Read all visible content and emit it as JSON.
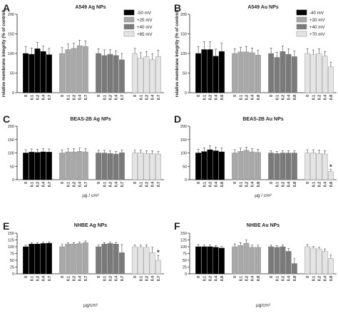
{
  "figure": {
    "shared_ylabel": "relative membrane integrity (% of control)"
  },
  "chart_data": [
    {
      "panel": "A",
      "title": "A549 Ag NPs",
      "type": "bar",
      "xlabel": "",
      "ylabel": "relative membrane integrity (% of control)",
      "ylim": [
        0,
        200
      ],
      "yticks": [
        0,
        50,
        100,
        150,
        200
      ],
      "categories": [
        "0",
        "0.1",
        "0.2",
        "0.4",
        "0.7"
      ],
      "series": [
        {
          "name": "-50 mV",
          "color": "#000000",
          "values": [
            100,
            98,
            112,
            105,
            97
          ],
          "errors": [
            18,
            16,
            16,
            14,
            16
          ]
        },
        {
          "name": "+25 mV",
          "color": "#a8a8a8",
          "values": [
            100,
            110,
            113,
            120,
            118
          ],
          "errors": [
            15,
            14,
            13,
            14,
            14
          ]
        },
        {
          "name": "+40 mV",
          "color": "#7a7a7a",
          "values": [
            100,
            95,
            98,
            95,
            84
          ],
          "errors": [
            12,
            14,
            12,
            12,
            16
          ]
        },
        {
          "name": "+65 mV",
          "color": "#e4e4e4",
          "values": [
            100,
            88,
            92,
            84,
            92
          ],
          "errors": [
            13,
            14,
            13,
            15,
            16
          ]
        }
      ]
    },
    {
      "panel": "B",
      "title": "A549 Au NPs",
      "type": "bar",
      "xlabel": "",
      "ylabel": "",
      "ylim": [
        0,
        200
      ],
      "yticks": [
        0,
        50,
        100,
        150,
        200
      ],
      "categories": [
        "0",
        "0.1",
        "0.2",
        "0.4",
        "0.8"
      ],
      "series": [
        {
          "name": "-40 mV",
          "color": "#000000",
          "values": [
            100,
            110,
            110,
            93,
            105
          ],
          "errors": [
            18,
            20,
            20,
            18,
            22
          ]
        },
        {
          "name": "+20 mV",
          "color": "#a8a8a8",
          "values": [
            100,
            104,
            104,
            102,
            96
          ],
          "errors": [
            12,
            12,
            14,
            12,
            12
          ]
        },
        {
          "name": "+40 mV",
          "color": "#7a7a7a",
          "values": [
            100,
            90,
            105,
            98,
            92
          ],
          "errors": [
            14,
            13,
            14,
            14,
            14
          ]
        },
        {
          "name": "+70 mV",
          "color": "#e4e4e4",
          "values": [
            100,
            97,
            100,
            93,
            66
          ],
          "errors": [
            12,
            12,
            12,
            12,
            12
          ]
        }
      ]
    },
    {
      "panel": "C",
      "title": "BEAS-2B Ag NPs",
      "type": "bar",
      "xlabel": "µg / cm²",
      "ylabel": "",
      "ylim": [
        0,
        200
      ],
      "yticks": [
        0,
        50,
        100,
        150,
        200
      ],
      "categories": [
        "0",
        "0.1",
        "0.2",
        "0.4",
        "0.7"
      ],
      "series": [
        {
          "name": "",
          "color": "#000000",
          "values": [
            100,
            103,
            102,
            104,
            103
          ],
          "errors": [
            12,
            12,
            12,
            12,
            12
          ]
        },
        {
          "name": "",
          "color": "#a8a8a8",
          "values": [
            100,
            104,
            104,
            106,
            104
          ],
          "errors": [
            12,
            12,
            12,
            12,
            12
          ]
        },
        {
          "name": "",
          "color": "#7a7a7a",
          "values": [
            100,
            100,
            98,
            96,
            101
          ],
          "errors": [
            10,
            10,
            10,
            10,
            10
          ]
        },
        {
          "name": "",
          "color": "#e4e4e4",
          "values": [
            100,
            100,
            98,
            98,
            96
          ],
          "errors": [
            10,
            10,
            10,
            10,
            10
          ]
        }
      ]
    },
    {
      "panel": "D",
      "title": "BEAS-2B Au NPs",
      "type": "bar",
      "xlabel": "µg / cm²",
      "ylabel": "",
      "ylim": [
        0,
        200
      ],
      "yticks": [
        0,
        50,
        100,
        150,
        200
      ],
      "categories": [
        "0",
        "0.1",
        "0.2",
        "0.4",
        "0.8"
      ],
      "annotations": [
        {
          "group": 3,
          "bar": 4,
          "text": "*"
        }
      ],
      "series": [
        {
          "name": "",
          "color": "#000000",
          "values": [
            100,
            105,
            112,
            108,
            104
          ],
          "errors": [
            14,
            14,
            14,
            14,
            14
          ]
        },
        {
          "name": "",
          "color": "#a8a8a8",
          "values": [
            100,
            106,
            110,
            104,
            102
          ],
          "errors": [
            12,
            12,
            12,
            12,
            12
          ]
        },
        {
          "name": "",
          "color": "#7a7a7a",
          "values": [
            100,
            98,
            100,
            100,
            100
          ],
          "errors": [
            8,
            8,
            8,
            8,
            8
          ]
        },
        {
          "name": "",
          "color": "#e4e4e4",
          "values": [
            100,
            100,
            98,
            96,
            30
          ],
          "errors": [
            12,
            12,
            12,
            12,
            8
          ]
        }
      ]
    },
    {
      "panel": "E",
      "title": "NHBE Ag NPs",
      "type": "bar",
      "xlabel": "µg/cm²",
      "ylabel": "",
      "ylim": [
        0,
        150
      ],
      "yticks": [
        0,
        25,
        50,
        75,
        100,
        125,
        150
      ],
      "categories": [
        "0",
        "0.1",
        "0.2",
        "0.4",
        "0.7"
      ],
      "annotations": [
        {
          "group": 3,
          "bar": 4,
          "text": "*"
        }
      ],
      "series": [
        {
          "name": "",
          "color": "#000000",
          "values": [
            100,
            110,
            110,
            112,
            113
          ],
          "errors": [
            6,
            5,
            5,
            5,
            5
          ]
        },
        {
          "name": "",
          "color": "#a8a8a8",
          "values": [
            100,
            110,
            110,
            112,
            115
          ],
          "errors": [
            8,
            5,
            5,
            5,
            6
          ]
        },
        {
          "name": "",
          "color": "#7a7a7a",
          "values": [
            100,
            110,
            112,
            110,
            78
          ],
          "errors": [
            6,
            5,
            5,
            6,
            30
          ]
        },
        {
          "name": "",
          "color": "#e4e4e4",
          "values": [
            100,
            98,
            98,
            78,
            50
          ],
          "errors": [
            6,
            8,
            8,
            20,
            18
          ]
        }
      ]
    },
    {
      "panel": "F",
      "title": "NHBE Au NPs",
      "type": "bar",
      "xlabel": "µg/cm²",
      "ylabel": "",
      "ylim": [
        0,
        150
      ],
      "yticks": [
        0,
        25,
        50,
        75,
        100,
        125,
        150
      ],
      "categories": [
        "0",
        "0.1",
        "0.2",
        "0.4",
        "0.8"
      ],
      "series": [
        {
          "name": "",
          "color": "#000000",
          "values": [
            100,
            100,
            100,
            98,
            95
          ],
          "errors": [
            8,
            6,
            6,
            6,
            6
          ]
        },
        {
          "name": "",
          "color": "#a8a8a8",
          "values": [
            100,
            105,
            113,
            98,
            98
          ],
          "errors": [
            10,
            10,
            12,
            8,
            8
          ]
        },
        {
          "name": "",
          "color": "#7a7a7a",
          "values": [
            100,
            98,
            100,
            83,
            38
          ],
          "errors": [
            6,
            6,
            6,
            10,
            18
          ]
        },
        {
          "name": "",
          "color": "#e4e4e4",
          "values": [
            100,
            95,
            92,
            82,
            57
          ],
          "errors": [
            8,
            6,
            6,
            10,
            12
          ]
        }
      ]
    }
  ]
}
